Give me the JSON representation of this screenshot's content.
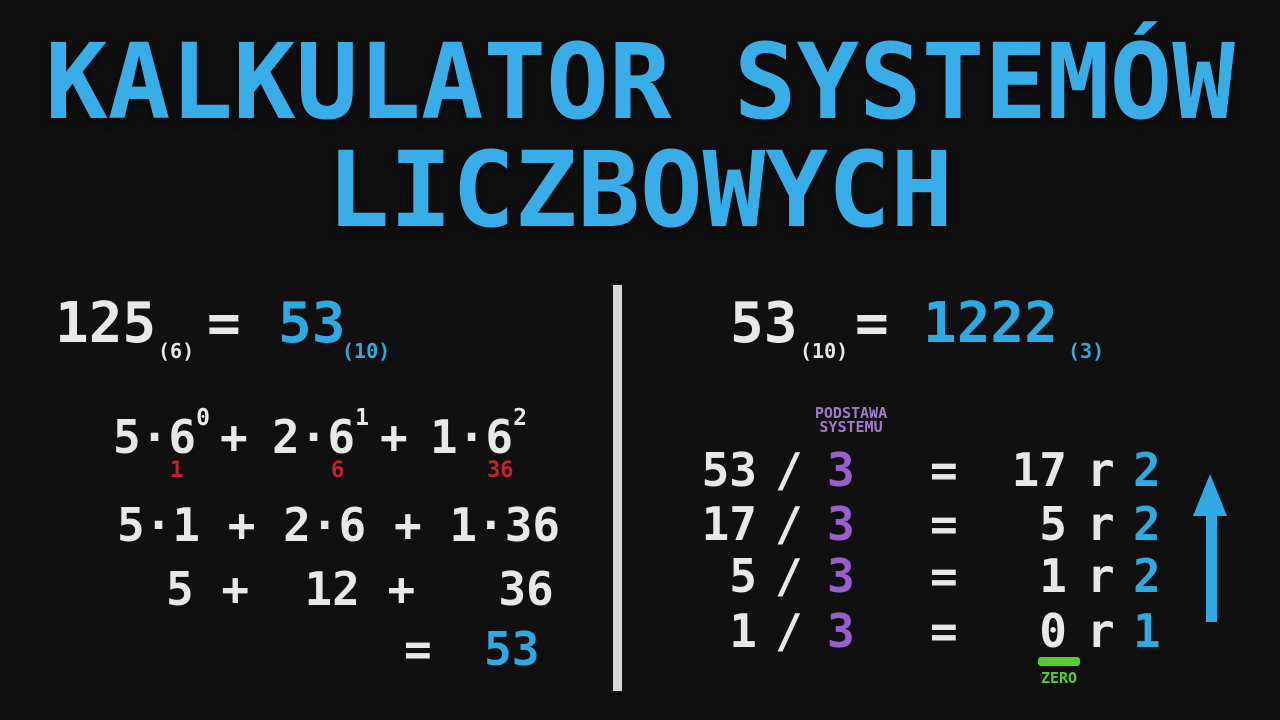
{
  "colors": {
    "background": "#101010",
    "title_cyan": "#38ADE8",
    "number_cyan": "#2FA9E1",
    "text_white": "#E8E8E8",
    "power_red": "#C42329",
    "base_purple": "#9A5FCE",
    "label_purple": "#A678CC",
    "zero_green": "#58CB2E",
    "divider_gray": "#D8D8D8"
  },
  "title": {
    "line1": "KALKULATOR SYSTEMÓW",
    "line2": "LICZBOWYCH"
  },
  "left_panel": {
    "equation": {
      "value": "125",
      "base_sub": "(6)",
      "equals": "=",
      "result": "53",
      "result_base_sub": "(10)"
    },
    "expansion": {
      "plus": "+",
      "terms": [
        {
          "text": "5·6",
          "exp": "0",
          "product": "1"
        },
        {
          "text": "2·6",
          "exp": "1",
          "product": "6"
        },
        {
          "text": "1·6",
          "exp": "2",
          "product": "36"
        }
      ]
    },
    "step2": "5·1 + 2·6 + 1·36",
    "step3": "5 +  12 +   36",
    "result_equals": "=",
    "result_value": "53"
  },
  "right_panel": {
    "equation": {
      "value": "53",
      "base_sub": "(10)",
      "equals": "=",
      "result": "1222",
      "result_base_sub": "(3)"
    },
    "base_label": {
      "line1": "PODSTAWA",
      "line2": "SYSTEMU"
    },
    "divisions": [
      {
        "dividend": "53",
        "slash": "/",
        "divisor": "3",
        "equals": "=",
        "quotient": "17",
        "r": "r",
        "remainder": "2"
      },
      {
        "dividend": "17",
        "slash": "/",
        "divisor": "3",
        "equals": "=",
        "quotient": "5",
        "r": "r",
        "remainder": "2"
      },
      {
        "dividend": "5",
        "slash": "/",
        "divisor": "3",
        "equals": "=",
        "quotient": "1",
        "r": "r",
        "remainder": "2"
      },
      {
        "dividend": "1",
        "slash": "/",
        "divisor": "3",
        "equals": "=",
        "quotient": "0",
        "r": "r",
        "remainder": "1"
      }
    ],
    "zero_label": "ZERO"
  }
}
